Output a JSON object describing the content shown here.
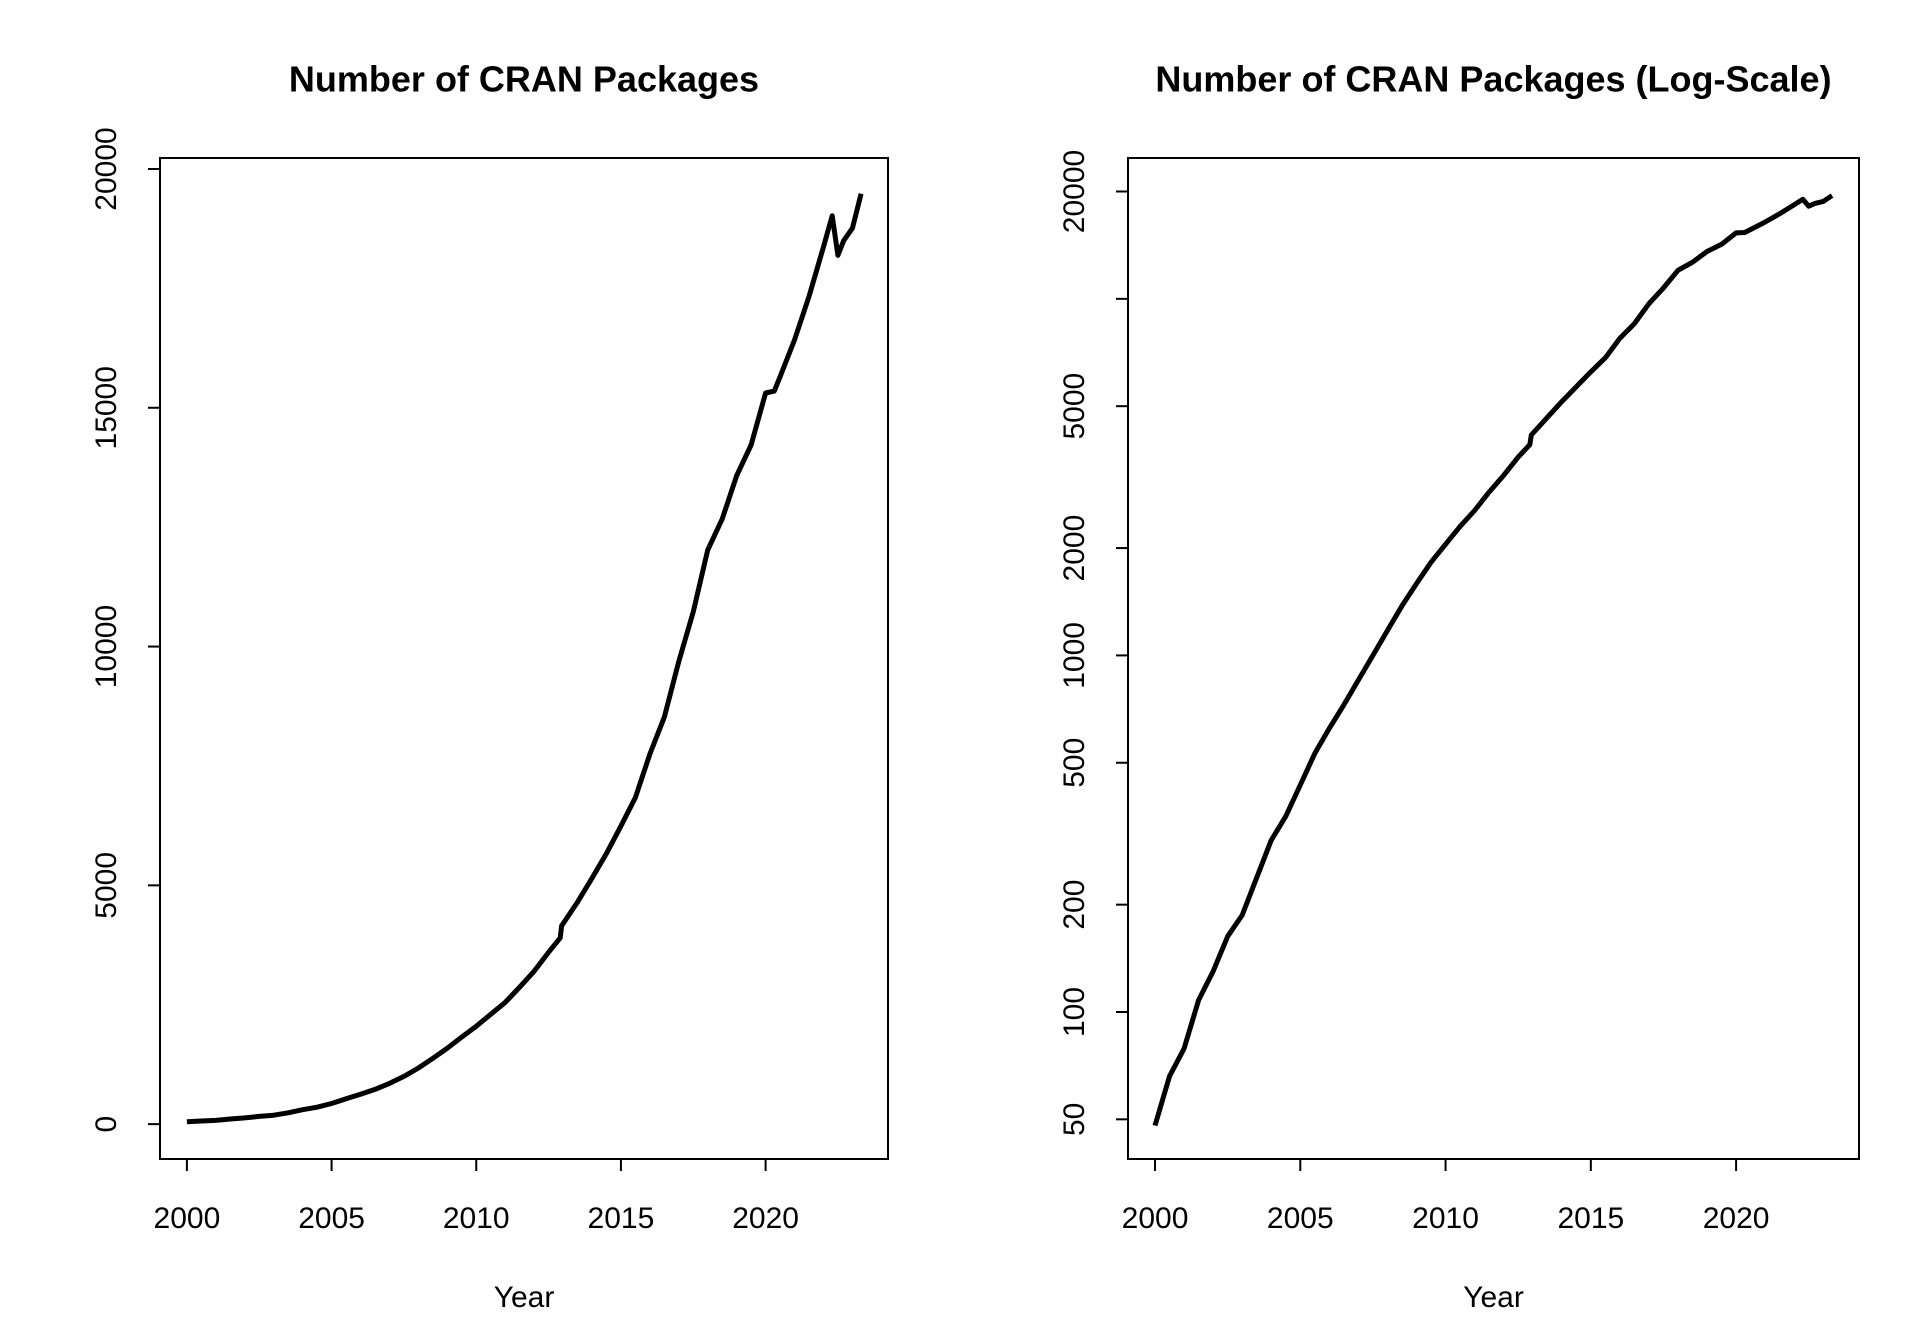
{
  "chart_data": [
    {
      "type": "line",
      "title": "Number of CRAN Packages",
      "xlabel": "Year",
      "x": [
        2000,
        2000.5,
        2001,
        2001.5,
        2002,
        2002.5,
        2003,
        2003.5,
        2004,
        2004.5,
        2005,
        2005.5,
        2006,
        2006.5,
        2007,
        2007.5,
        2008,
        2008.5,
        2009,
        2009.5,
        2010,
        2010.5,
        2011,
        2011.5,
        2012,
        2012.5,
        2012.9,
        2012.95,
        2013.5,
        2014,
        2014.5,
        2015,
        2015.5,
        2016,
        2016.5,
        2017,
        2017.5,
        2018,
        2018.5,
        2019,
        2019.5,
        2020,
        2020.3,
        2020.5,
        2021,
        2021.5,
        2022,
        2022.3,
        2022.5,
        2022.7,
        2023,
        2023.3
      ],
      "values": [
        48,
        66,
        79,
        108,
        130,
        163,
        187,
        238,
        303,
        354,
        433,
        531,
        624,
        727,
        853,
        1000,
        1175,
        1378,
        1590,
        1825,
        2050,
        2300,
        2550,
        2870,
        3200,
        3600,
        3900,
        4150,
        4650,
        5150,
        5670,
        6240,
        6840,
        7750,
        8520,
        9690,
        10730,
        12020,
        12670,
        13580,
        14220,
        15310,
        15350,
        15650,
        16420,
        17330,
        18370,
        19020,
        18190,
        18500,
        18760,
        19480
      ],
      "color": "#000000",
      "log_scale": false,
      "xlim": [
        1999.07,
        2024.23
      ],
      "xticks": [
        2000,
        2005,
        2010,
        2015,
        2020
      ],
      "ylim": [
        -730,
        20230
      ],
      "yticks": [
        0,
        5000,
        10000,
        15000,
        20000
      ]
    },
    {
      "type": "line",
      "title": "Number of CRAN Packages (Log-Scale)",
      "xlabel": "Year",
      "x": [
        2000,
        2000.5,
        2001,
        2001.5,
        2002,
        2002.5,
        2003,
        2003.5,
        2004,
        2004.5,
        2005,
        2005.5,
        2006,
        2006.5,
        2007,
        2007.5,
        2008,
        2008.5,
        2009,
        2009.5,
        2010,
        2010.5,
        2011,
        2011.5,
        2012,
        2012.5,
        2012.9,
        2012.95,
        2013.5,
        2014,
        2014.5,
        2015,
        2015.5,
        2016,
        2016.5,
        2017,
        2017.5,
        2018,
        2018.5,
        2019,
        2019.5,
        2020,
        2020.3,
        2020.5,
        2021,
        2021.5,
        2022,
        2022.3,
        2022.5,
        2022.7,
        2023,
        2023.3
      ],
      "values": [
        48,
        66,
        79,
        108,
        130,
        163,
        187,
        238,
        303,
        354,
        433,
        531,
        624,
        727,
        853,
        1000,
        1175,
        1378,
        1590,
        1825,
        2050,
        2300,
        2550,
        2870,
        3200,
        3600,
        3900,
        4150,
        4650,
        5150,
        5670,
        6240,
        6840,
        7750,
        8520,
        9690,
        10730,
        12020,
        12670,
        13580,
        14220,
        15310,
        15350,
        15650,
        16420,
        17330,
        18370,
        19020,
        18190,
        18500,
        18760,
        19480
      ],
      "color": "#000000",
      "log_scale": true,
      "xlim": [
        1999.07,
        2024.23
      ],
      "xticks": [
        2000,
        2005,
        2010,
        2015,
        2020
      ],
      "ylim": [
        38.7,
        24830
      ],
      "yticks": [
        50,
        100,
        200,
        500,
        1000,
        2000,
        5000,
        {
          "value": 10000,
          "label": null
        },
        20000
      ]
    }
  ]
}
